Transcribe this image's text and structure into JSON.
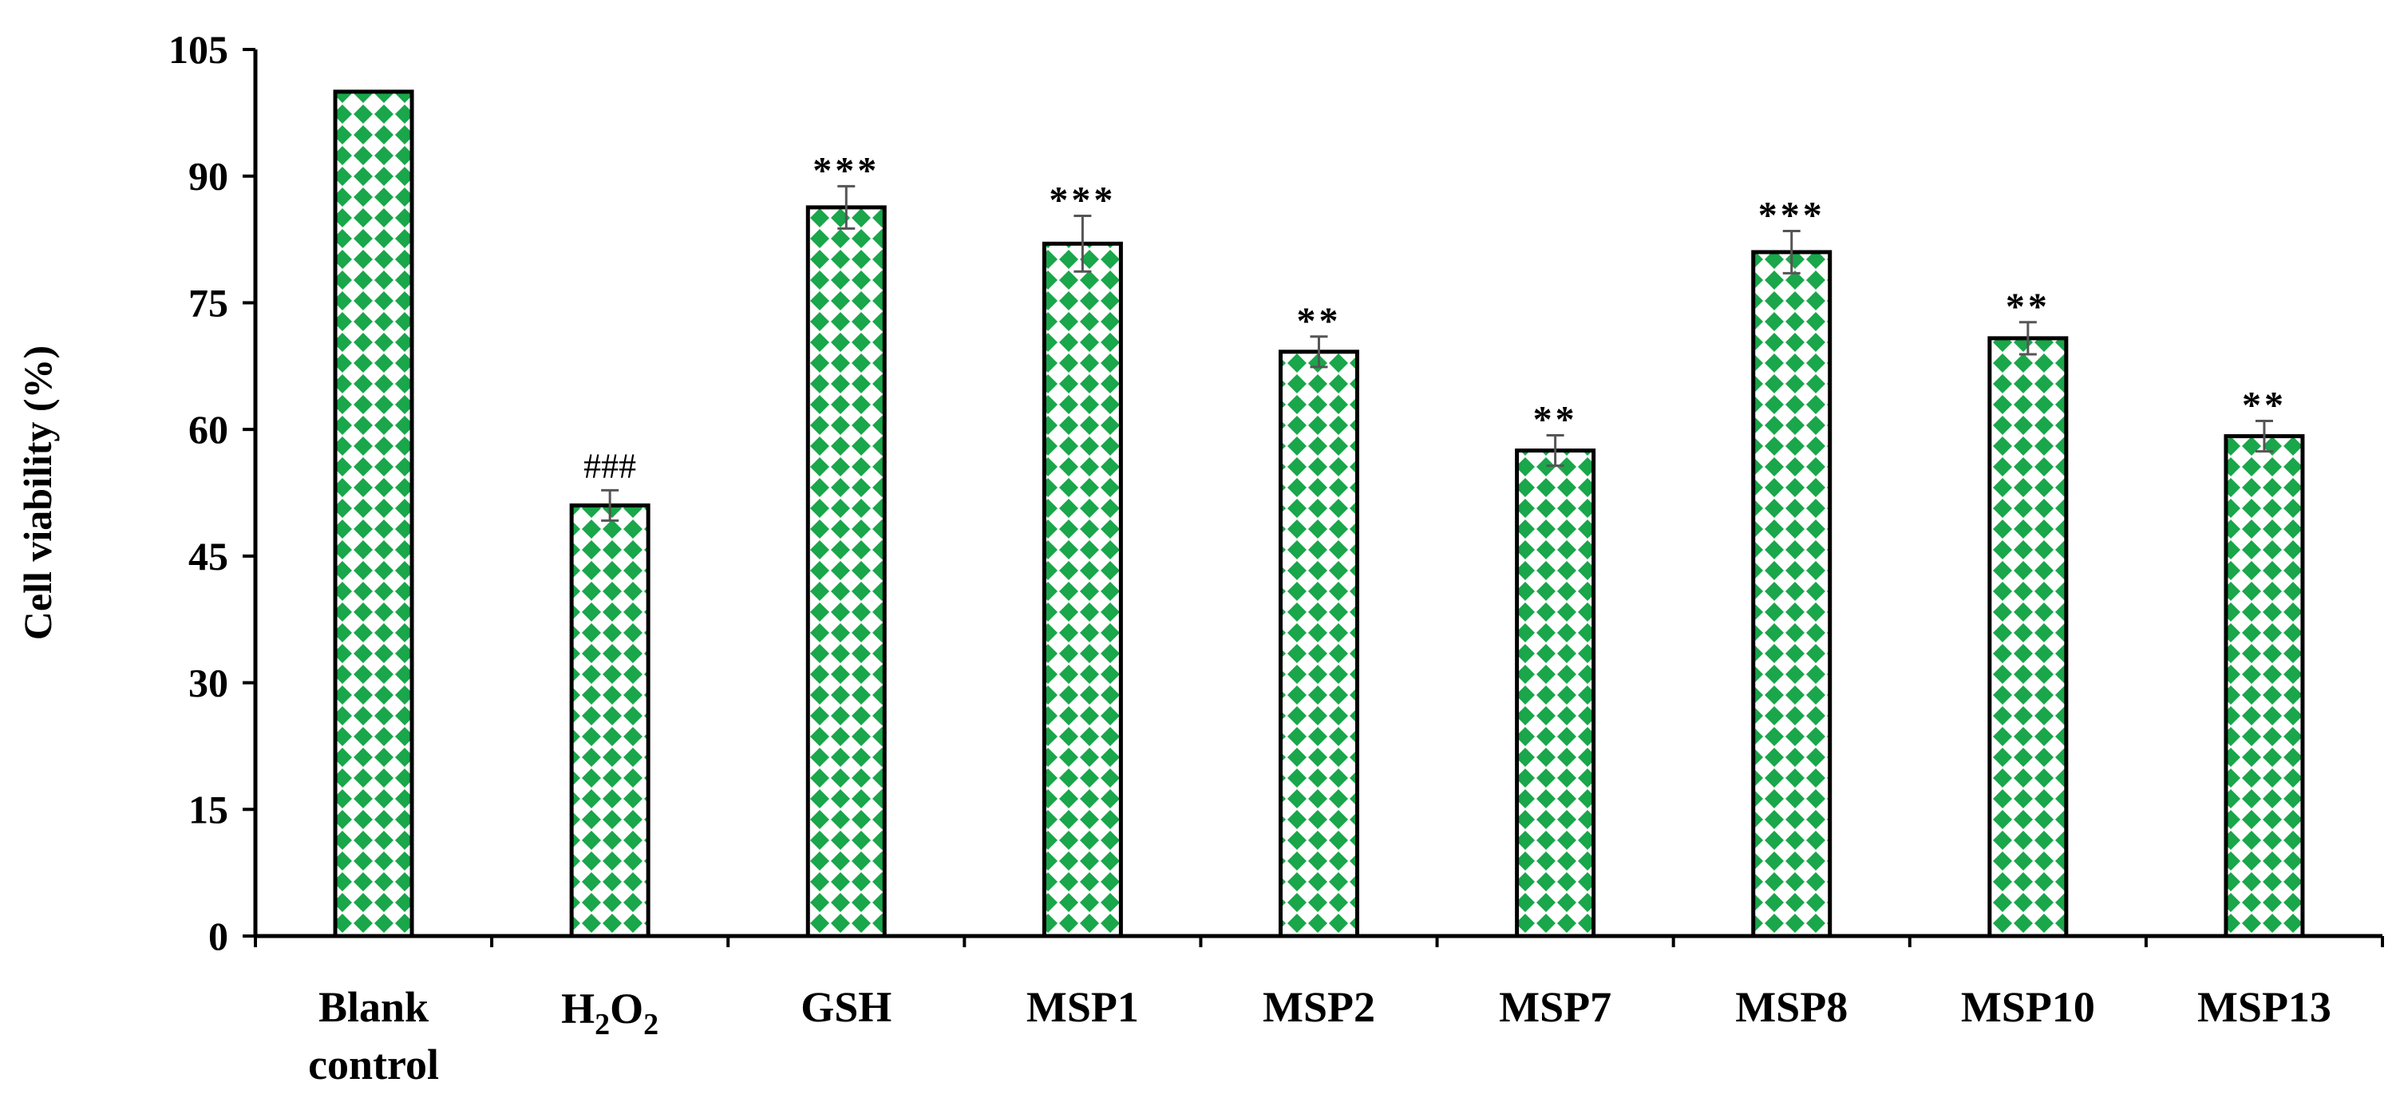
{
  "chart_data": {
    "type": "bar",
    "categories": [
      "Blank control",
      "H2O2",
      "GSH",
      "MSP1",
      "MSP2",
      "MSP7",
      "MSP8",
      "MSP10",
      "MSP13"
    ],
    "category_display": [
      {
        "lines": [
          "Blank",
          "control"
        ]
      },
      {
        "base": "H",
        "sub1": "2",
        "mid": "O",
        "sub2": "2"
      },
      {
        "lines": [
          "GSH"
        ]
      },
      {
        "lines": [
          "MSP1"
        ]
      },
      {
        "lines": [
          "MSP2"
        ]
      },
      {
        "lines": [
          "MSP7"
        ]
      },
      {
        "lines": [
          "MSP8"
        ]
      },
      {
        "lines": [
          "MSP10"
        ]
      },
      {
        "lines": [
          "MSP13"
        ]
      }
    ],
    "values": [
      100,
      51,
      86.3,
      82,
      69.2,
      57.5,
      81,
      70.8,
      59.2
    ],
    "errors": [
      0,
      1.8,
      2.5,
      3.3,
      1.8,
      1.8,
      2.5,
      1.9,
      1.8
    ],
    "significance": [
      "",
      "###",
      "***",
      "***",
      "**",
      "**",
      "***",
      "**",
      "**"
    ],
    "ylabel": "Cell viability (%)",
    "xlabel": "",
    "title": "",
    "ylim": [
      0,
      105
    ],
    "yticks": [
      0,
      15,
      30,
      45,
      60,
      75,
      90,
      105
    ],
    "grid": false,
    "colors": {
      "bar_fill": "#ffffff",
      "bar_pattern": "#1aa64a",
      "bar_border": "#000000",
      "error_bar": "#555555"
    }
  }
}
